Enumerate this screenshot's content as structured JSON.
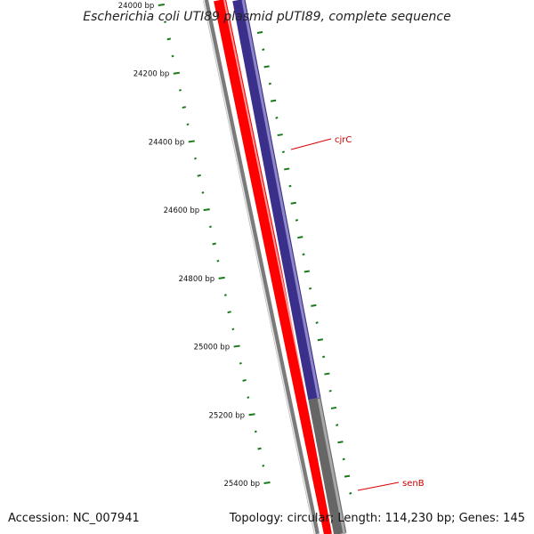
{
  "title": "Escherichia coli UTI89 plasmid pUTI89, complete sequence",
  "accession": "Accession: NC_007941",
  "summary": "Topology: circular; Length: 114,230 bp; Genes: 145",
  "colors": {
    "background": "#ffffff",
    "backbone": "#7a7a7a",
    "backbone_highlight": "#e8e8e8",
    "forward_strand": "#ff0000",
    "forward_highlight": "#ff9c9c",
    "gene_cjrC": "#3a2f8a",
    "gene_cjrC_highlight": "#8f86c7",
    "gene_senB": "#666666",
    "gene_senB_highlight": "#a8a8a8",
    "ticks": "#1a7a1a",
    "gene_label": "#cc0000",
    "label_leader": "#dd0000"
  },
  "scale": {
    "first_bp": 24000,
    "last_bp": 25500,
    "labeled_ticks": [
      {
        "bp": 24000,
        "label": "24000 bp"
      },
      {
        "bp": 24200,
        "label": "24200 bp"
      },
      {
        "bp": 24400,
        "label": "24400 bp"
      },
      {
        "bp": 24600,
        "label": "24600 bp"
      },
      {
        "bp": 24800,
        "label": "24800 bp"
      },
      {
        "bp": 25000,
        "label": "25000 bp"
      },
      {
        "bp": 25200,
        "label": "25200 bp"
      },
      {
        "bp": 25400,
        "label": "25400 bp"
      }
    ],
    "minor_tick_every_bp": 50,
    "medium_tick_every_bp": 100
  },
  "genes": [
    {
      "name": "cjrC",
      "strand": "reverse",
      "color_key": "gene_cjrC"
    },
    {
      "name": "senB",
      "strand": "reverse",
      "color_key": "gene_senB"
    }
  ]
}
